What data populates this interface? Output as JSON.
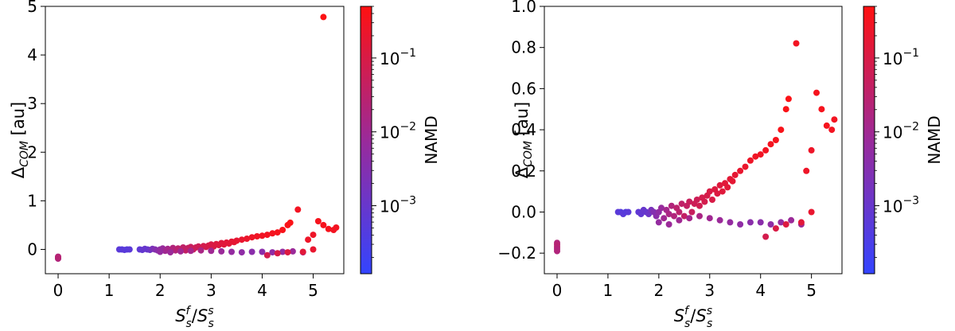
{
  "chart_data": [
    {
      "type": "scatter",
      "title": "",
      "xlabel_base": "S",
      "xlabel_sub1": "s",
      "xlabel_sup1": "f",
      "xlabel_slash": "/",
      "xlabel_sub2": "s",
      "xlabel_sup2": "s",
      "ylabel_base": "Δ",
      "ylabel_sub": "COM",
      "ylabel_unit": " [au]",
      "xlim": [
        -0.25,
        5.6
      ],
      "ylim": [
        -0.5,
        5.0
      ],
      "x_ticks": [
        0,
        1,
        2,
        3,
        4,
        5
      ],
      "x_tick_labels": [
        "0",
        "1",
        "2",
        "3",
        "4",
        "5"
      ],
      "y_ticks": [
        0,
        1,
        2,
        3,
        4,
        5
      ],
      "y_tick_labels": [
        "0",
        "1",
        "2",
        "3",
        "4",
        "5"
      ],
      "grid": false,
      "colorbar": {
        "label": "NAMD",
        "scale": "log",
        "range": [
          0.00012,
          0.5
        ],
        "ticks": [
          0.001,
          0.01,
          0.1
        ],
        "tick_labels": [
          {
            "base": "10",
            "exp": "−3"
          },
          {
            "base": "10",
            "exp": "−2"
          },
          {
            "base": "10",
            "exp": "−1"
          }
        ],
        "color_low": "#3344ff",
        "color_high": "#ff1111"
      },
      "series": [
        {
          "points": [
            [
              0.0,
              -0.15,
              0.02
            ],
            [
              0.0,
              -0.18,
              0.03
            ],
            [
              0.0,
              -0.19,
              0.02
            ],
            [
              0.0,
              -0.16,
              0.025
            ],
            [
              1.2,
              0.0,
              0.0006
            ],
            [
              1.25,
              0.0,
              0.0005
            ],
            [
              1.3,
              -0.01,
              0.0006
            ],
            [
              1.35,
              0.0,
              0.0005
            ],
            [
              1.4,
              0.0,
              0.0006
            ],
            [
              1.6,
              0.0,
              0.0007
            ],
            [
              1.65,
              -0.01,
              0.0008
            ],
            [
              1.7,
              0.01,
              0.001
            ],
            [
              1.75,
              0.0,
              0.0009
            ],
            [
              1.8,
              -0.01,
              0.0012
            ],
            [
              1.85,
              0.01,
              0.002
            ],
            [
              1.9,
              0.0,
              0.003
            ],
            [
              1.95,
              -0.02,
              0.004
            ],
            [
              2.0,
              0.0,
              0.005
            ],
            [
              2.05,
              0.02,
              0.007
            ],
            [
              2.1,
              -0.03,
              0.01
            ],
            [
              2.15,
              0.01,
              0.012
            ],
            [
              2.2,
              -0.01,
              0.015
            ],
            [
              2.25,
              0.03,
              0.02
            ],
            [
              2.3,
              -0.02,
              0.02
            ],
            [
              2.35,
              0.02,
              0.03
            ],
            [
              2.4,
              0.0,
              0.03
            ],
            [
              2.45,
              0.04,
              0.035
            ],
            [
              2.5,
              -0.02,
              0.04
            ],
            [
              2.55,
              0.03,
              0.04
            ],
            [
              2.6,
              0.05,
              0.05
            ],
            [
              2.65,
              0.0,
              0.05
            ],
            [
              2.7,
              0.04,
              0.06
            ],
            [
              2.75,
              0.06,
              0.06
            ],
            [
              2.8,
              0.03,
              0.07
            ],
            [
              2.85,
              0.07,
              0.08
            ],
            [
              2.9,
              0.05,
              0.08
            ],
            [
              2.95,
              0.08,
              0.09
            ],
            [
              3.0,
              0.1,
              0.1
            ],
            [
              3.05,
              0.06,
              0.1
            ],
            [
              3.1,
              0.11,
              0.12
            ],
            [
              3.15,
              0.09,
              0.12
            ],
            [
              3.2,
              0.13,
              0.13
            ],
            [
              3.25,
              0.1,
              0.14
            ],
            [
              3.3,
              0.14,
              0.15
            ],
            [
              3.35,
              0.12,
              0.15
            ],
            [
              3.4,
              0.16,
              0.16
            ],
            [
              3.45,
              0.15,
              0.17
            ],
            [
              3.5,
              0.18,
              0.18
            ],
            [
              3.6,
              0.2,
              0.2
            ],
            [
              3.7,
              0.22,
              0.22
            ],
            [
              3.8,
              0.25,
              0.25
            ],
            [
              3.9,
              0.27,
              0.27
            ],
            [
              4.0,
              0.28,
              0.28
            ],
            [
              4.1,
              0.3,
              0.3
            ],
            [
              4.2,
              0.33,
              0.32
            ],
            [
              4.3,
              0.35,
              0.35
            ],
            [
              4.4,
              0.4,
              0.38
            ],
            [
              4.5,
              0.5,
              0.4
            ],
            [
              4.55,
              0.55,
              0.42
            ],
            [
              2.0,
              -0.05,
              0.006
            ],
            [
              2.2,
              -0.06,
              0.008
            ],
            [
              2.4,
              -0.04,
              0.01
            ],
            [
              2.6,
              -0.03,
              0.012
            ],
            [
              2.8,
              -0.02,
              0.015
            ],
            [
              3.0,
              -0.03,
              0.01
            ],
            [
              3.2,
              -0.04,
              0.008
            ],
            [
              3.4,
              -0.05,
              0.006
            ],
            [
              3.6,
              -0.06,
              0.005
            ],
            [
              3.8,
              -0.05,
              0.004
            ],
            [
              4.0,
              -0.05,
              0.004
            ],
            [
              4.2,
              -0.06,
              0.005
            ],
            [
              4.4,
              -0.05,
              0.006
            ],
            [
              4.6,
              -0.04,
              0.008
            ],
            [
              4.8,
              -0.06,
              0.01
            ],
            [
              4.1,
              -0.12,
              0.08
            ],
            [
              4.3,
              -0.08,
              0.1
            ],
            [
              4.5,
              -0.06,
              0.12
            ],
            [
              4.8,
              -0.05,
              0.15
            ],
            [
              5.0,
              0.0,
              0.2
            ],
            [
              4.7,
              0.82,
              0.3
            ],
            [
              4.9,
              0.2,
              0.25
            ],
            [
              5.0,
              0.3,
              0.25
            ],
            [
              5.1,
              0.58,
              0.35
            ],
            [
              5.2,
              0.5,
              0.35
            ],
            [
              5.3,
              0.42,
              0.35
            ],
            [
              5.4,
              0.4,
              0.3
            ],
            [
              5.45,
              0.45,
              0.3
            ],
            [
              5.2,
              4.78,
              0.45
            ]
          ]
        }
      ]
    },
    {
      "type": "scatter",
      "title": "",
      "xlabel_base": "S",
      "xlabel_sub1": "s",
      "xlabel_sup1": "f",
      "xlabel_slash": "/",
      "xlabel_sub2": "s",
      "xlabel_sup2": "s",
      "ylabel_base": "Δ",
      "ylabel_sub": "COM",
      "ylabel_unit": " [au]",
      "xlim": [
        -0.25,
        5.6
      ],
      "ylim": [
        -0.3,
        1.0
      ],
      "x_ticks": [
        0,
        1,
        2,
        3,
        4,
        5
      ],
      "x_tick_labels": [
        "0",
        "1",
        "2",
        "3",
        "4",
        "5"
      ],
      "y_ticks": [
        -0.2,
        0.0,
        0.2,
        0.4,
        0.6,
        0.8,
        1.0
      ],
      "y_tick_labels": [
        "−0.2",
        "0.0",
        "0.2",
        "0.4",
        "0.6",
        "0.8",
        "1.0"
      ],
      "grid": false,
      "colorbar": {
        "label": "NAMD",
        "scale": "log",
        "range": [
          0.00012,
          0.5
        ],
        "ticks": [
          0.001,
          0.01,
          0.1
        ],
        "tick_labels": [
          {
            "base": "10",
            "exp": "−3"
          },
          {
            "base": "10",
            "exp": "−2"
          },
          {
            "base": "10",
            "exp": "−1"
          }
        ],
        "color_low": "#3344ff",
        "color_high": "#ff1111"
      },
      "series": [
        {
          "points": [
            [
              0.0,
              -0.15,
              0.02
            ],
            [
              0.0,
              -0.17,
              0.03
            ],
            [
              0.0,
              -0.19,
              0.02
            ],
            [
              0.0,
              -0.16,
              0.025
            ],
            [
              0.0,
              -0.18,
              0.02
            ],
            [
              1.2,
              0.0,
              0.0006
            ],
            [
              1.25,
              0.0,
              0.0005
            ],
            [
              1.3,
              -0.01,
              0.0006
            ],
            [
              1.35,
              0.0,
              0.0005
            ],
            [
              1.4,
              0.0,
              0.0006
            ],
            [
              1.6,
              0.0,
              0.0007
            ],
            [
              1.65,
              -0.01,
              0.0008
            ],
            [
              1.7,
              0.01,
              0.001
            ],
            [
              1.75,
              0.0,
              0.0009
            ],
            [
              1.8,
              -0.01,
              0.0012
            ],
            [
              1.85,
              0.01,
              0.002
            ],
            [
              1.9,
              0.0,
              0.003
            ],
            [
              1.95,
              -0.02,
              0.004
            ],
            [
              2.0,
              0.0,
              0.005
            ],
            [
              2.05,
              0.02,
              0.007
            ],
            [
              2.1,
              -0.03,
              0.01
            ],
            [
              2.15,
              0.01,
              0.012
            ],
            [
              2.2,
              -0.01,
              0.015
            ],
            [
              2.25,
              0.03,
              0.02
            ],
            [
              2.3,
              -0.02,
              0.02
            ],
            [
              2.35,
              0.02,
              0.03
            ],
            [
              2.4,
              0.0,
              0.03
            ],
            [
              2.45,
              0.04,
              0.035
            ],
            [
              2.5,
              -0.02,
              0.04
            ],
            [
              2.55,
              0.03,
              0.04
            ],
            [
              2.6,
              0.05,
              0.05
            ],
            [
              2.65,
              0.0,
              0.05
            ],
            [
              2.7,
              0.04,
              0.06
            ],
            [
              2.75,
              0.06,
              0.06
            ],
            [
              2.8,
              0.03,
              0.07
            ],
            [
              2.85,
              0.07,
              0.08
            ],
            [
              2.9,
              0.05,
              0.08
            ],
            [
              2.95,
              0.08,
              0.09
            ],
            [
              3.0,
              0.1,
              0.1
            ],
            [
              3.05,
              0.06,
              0.1
            ],
            [
              3.1,
              0.11,
              0.12
            ],
            [
              3.15,
              0.09,
              0.12
            ],
            [
              3.2,
              0.13,
              0.13
            ],
            [
              3.25,
              0.1,
              0.14
            ],
            [
              3.3,
              0.14,
              0.15
            ],
            [
              3.35,
              0.12,
              0.15
            ],
            [
              3.4,
              0.16,
              0.16
            ],
            [
              3.45,
              0.15,
              0.17
            ],
            [
              3.5,
              0.18,
              0.18
            ],
            [
              3.6,
              0.2,
              0.2
            ],
            [
              3.7,
              0.22,
              0.22
            ],
            [
              3.8,
              0.25,
              0.25
            ],
            [
              3.9,
              0.27,
              0.27
            ],
            [
              4.0,
              0.28,
              0.28
            ],
            [
              4.1,
              0.3,
              0.3
            ],
            [
              4.2,
              0.33,
              0.32
            ],
            [
              4.3,
              0.35,
              0.35
            ],
            [
              4.4,
              0.4,
              0.38
            ],
            [
              4.5,
              0.5,
              0.4
            ],
            [
              4.55,
              0.55,
              0.42
            ],
            [
              2.0,
              -0.05,
              0.006
            ],
            [
              2.2,
              -0.06,
              0.008
            ],
            [
              2.4,
              -0.04,
              0.01
            ],
            [
              2.6,
              -0.03,
              0.012
            ],
            [
              2.8,
              -0.02,
              0.015
            ],
            [
              3.0,
              -0.03,
              0.01
            ],
            [
              3.2,
              -0.04,
              0.008
            ],
            [
              3.4,
              -0.05,
              0.006
            ],
            [
              3.6,
              -0.06,
              0.005
            ],
            [
              3.8,
              -0.05,
              0.004
            ],
            [
              4.0,
              -0.05,
              0.004
            ],
            [
              4.2,
              -0.06,
              0.005
            ],
            [
              4.4,
              -0.05,
              0.006
            ],
            [
              4.6,
              -0.04,
              0.008
            ],
            [
              4.8,
              -0.06,
              0.01
            ],
            [
              4.1,
              -0.12,
              0.08
            ],
            [
              4.3,
              -0.08,
              0.1
            ],
            [
              4.5,
              -0.06,
              0.12
            ],
            [
              4.8,
              -0.05,
              0.15
            ],
            [
              5.0,
              0.0,
              0.2
            ],
            [
              4.7,
              0.82,
              0.3
            ],
            [
              4.9,
              0.2,
              0.25
            ],
            [
              5.0,
              0.3,
              0.25
            ],
            [
              5.1,
              0.58,
              0.35
            ],
            [
              5.2,
              0.5,
              0.35
            ],
            [
              5.3,
              0.42,
              0.35
            ],
            [
              5.4,
              0.4,
              0.3
            ],
            [
              5.45,
              0.45,
              0.3
            ]
          ]
        }
      ]
    }
  ]
}
